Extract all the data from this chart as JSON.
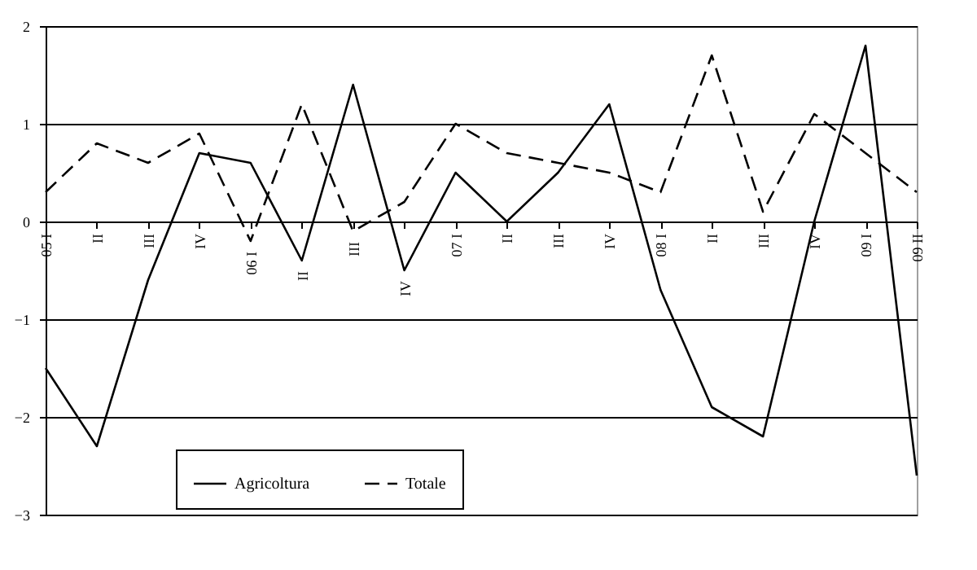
{
  "chart_data": {
    "type": "line",
    "categories": [
      "05 I",
      "II",
      "III",
      "IV",
      "06 I",
      "II",
      "III",
      "IV",
      "07 I",
      "II",
      "III",
      "IV",
      "08 I",
      "II",
      "III",
      "IV",
      "09 I",
      "09 II"
    ],
    "series": [
      {
        "name": "Agricoltura",
        "color": "#000000",
        "line_style": "solid",
        "values": [
          -1.5,
          -2.3,
          -0.6,
          0.7,
          0.6,
          -0.4,
          1.4,
          -0.5,
          0.5,
          0.0,
          0.5,
          1.2,
          -0.7,
          -1.9,
          -2.2,
          0.0,
          1.8,
          -2.6
        ]
      },
      {
        "name": "Totale",
        "color": "#000000",
        "line_style": "dashed",
        "values": [
          0.3,
          0.8,
          0.6,
          0.9,
          -0.2,
          1.2,
          -0.1,
          0.2,
          1.0,
          0.7,
          0.6,
          0.5,
          0.3,
          1.7,
          0.1,
          1.1,
          0.7,
          0.3
        ]
      }
    ],
    "ylim": [
      -3,
      2
    ],
    "yticks": [
      -3,
      -2,
      -1,
      0,
      1,
      2
    ],
    "grid": "y",
    "legend": "bottom left",
    "marker": "none"
  }
}
